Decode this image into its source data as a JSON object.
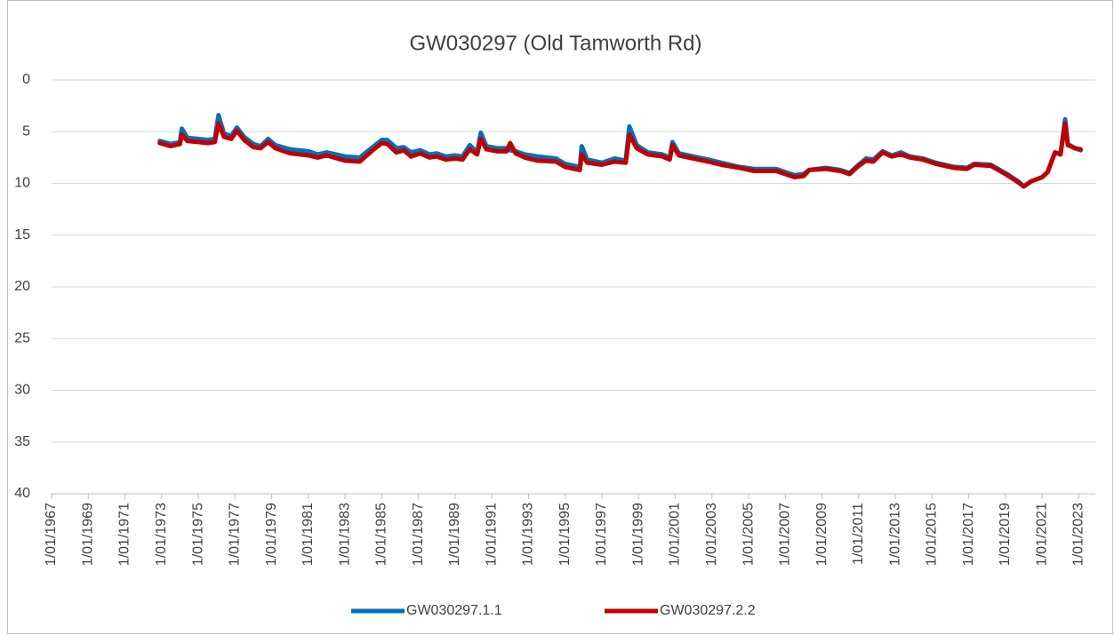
{
  "chart_data": {
    "type": "line",
    "title": "GW030297 (Old Tamworth Rd)",
    "x": [
      1972.9,
      1973.5,
      1974.0,
      1974.1,
      1974.4,
      1975.0,
      1975.5,
      1975.9,
      1976.1,
      1976.4,
      1976.8,
      1977.1,
      1977.5,
      1978.0,
      1978.4,
      1978.8,
      1979.2,
      1980.0,
      1981.0,
      1981.5,
      1982.0,
      1983.0,
      1983.8,
      1984.5,
      1985.0,
      1985.3,
      1985.8,
      1986.2,
      1986.6,
      1987.1,
      1987.6,
      1988.0,
      1988.5,
      1989.0,
      1989.4,
      1989.8,
      1990.2,
      1990.4,
      1990.7,
      1991.3,
      1991.8,
      1992.0,
      1992.3,
      1992.8,
      1993.5,
      1994.5,
      1995.0,
      1995.5,
      1995.8,
      1995.9,
      1996.2,
      1997.0,
      1997.7,
      1998.3,
      1998.5,
      1998.9,
      1999.5,
      2000.3,
      2000.7,
      2000.85,
      2001.2,
      2002.0,
      2002.8,
      2003.5,
      2004.5,
      2005.3,
      2006.5,
      2007.5,
      2008.0,
      2008.3,
      2009.2,
      2010.0,
      2010.5,
      2011.0,
      2011.4,
      2011.8,
      2012.3,
      2012.8,
      2013.3,
      2013.8,
      2014.5,
      2015.2,
      2016.2,
      2016.9,
      2017.3,
      2018.2,
      2019.0,
      2019.7,
      2020.0,
      2020.4,
      2021.0,
      2021.3,
      2021.7,
      2022.0,
      2022.25,
      2022.4,
      2022.8,
      2023.1
    ],
    "series": [
      {
        "name": "GW030297.1.1",
        "color": "#0070c0",
        "values": [
          5.9,
          6.2,
          6.0,
          4.7,
          5.6,
          5.7,
          5.8,
          5.7,
          3.4,
          5.2,
          5.4,
          4.6,
          5.5,
          6.2,
          6.4,
          5.7,
          6.3,
          6.7,
          6.9,
          7.2,
          7.0,
          7.4,
          7.5,
          6.5,
          5.8,
          5.8,
          6.6,
          6.5,
          7.0,
          6.8,
          7.2,
          7.1,
          7.4,
          7.3,
          7.4,
          6.3,
          7.0,
          5.1,
          6.4,
          6.6,
          6.6,
          6.8,
          6.9,
          7.2,
          7.4,
          7.6,
          8.1,
          8.3,
          8.4,
          6.4,
          7.7,
          8.0,
          7.6,
          7.8,
          4.5,
          6.3,
          7.0,
          7.2,
          7.5,
          6.0,
          7.1,
          7.4,
          7.7,
          8.0,
          8.4,
          8.6,
          8.6,
          9.2,
          9.1,
          8.7,
          8.5,
          8.7,
          9.0,
          8.2,
          7.6,
          7.7,
          6.9,
          7.3,
          7.0,
          7.4,
          7.6,
          8.0,
          8.4,
          8.5,
          8.1,
          8.2,
          9.0,
          9.8,
          10.3,
          9.8,
          9.4,
          8.9,
          7.0,
          7.2,
          3.8,
          6.2,
          6.6,
          6.8
        ]
      },
      {
        "name": "GW030297.2.2",
        "color": "#c00000",
        "values": [
          6.1,
          6.4,
          6.2,
          5.3,
          5.9,
          6.0,
          6.1,
          6.0,
          4.2,
          5.5,
          5.7,
          4.9,
          5.8,
          6.5,
          6.6,
          6.0,
          6.6,
          7.1,
          7.3,
          7.5,
          7.3,
          7.8,
          7.9,
          6.8,
          6.1,
          6.2,
          7.0,
          6.8,
          7.4,
          7.1,
          7.5,
          7.4,
          7.7,
          7.6,
          7.7,
          6.7,
          7.2,
          5.7,
          6.7,
          6.9,
          6.9,
          6.1,
          7.1,
          7.5,
          7.8,
          7.9,
          8.4,
          8.6,
          8.7,
          7.2,
          8.0,
          8.2,
          7.9,
          8.0,
          5.3,
          6.6,
          7.2,
          7.4,
          7.7,
          6.3,
          7.3,
          7.6,
          7.9,
          8.2,
          8.5,
          8.8,
          8.8,
          9.4,
          9.3,
          8.7,
          8.6,
          8.8,
          9.1,
          8.3,
          7.8,
          7.9,
          7.0,
          7.4,
          7.2,
          7.5,
          7.7,
          8.1,
          8.5,
          8.6,
          8.2,
          8.3,
          9.1,
          9.9,
          10.3,
          9.8,
          9.4,
          8.9,
          7.0,
          7.2,
          4.2,
          6.3,
          6.6,
          6.7
        ]
      }
    ],
    "xlim": [
      1967,
      2023.9
    ],
    "xticks": [
      {
        "value": 1967,
        "label": "1/01/1967"
      },
      {
        "value": 1969,
        "label": "1/01/1969"
      },
      {
        "value": 1971,
        "label": "1/01/1971"
      },
      {
        "value": 1973,
        "label": "1/01/1973"
      },
      {
        "value": 1975,
        "label": "1/01/1975"
      },
      {
        "value": 1977,
        "label": "1/01/1977"
      },
      {
        "value": 1979,
        "label": "1/01/1979"
      },
      {
        "value": 1981,
        "label": "1/01/1981"
      },
      {
        "value": 1983,
        "label": "1/01/1983"
      },
      {
        "value": 1985,
        "label": "1/01/1985"
      },
      {
        "value": 1987,
        "label": "1/01/1987"
      },
      {
        "value": 1989,
        "label": "1/01/1989"
      },
      {
        "value": 1991,
        "label": "1/01/1991"
      },
      {
        "value": 1993,
        "label": "1/01/1993"
      },
      {
        "value": 1995,
        "label": "1/01/1995"
      },
      {
        "value": 1997,
        "label": "1/01/1997"
      },
      {
        "value": 1999,
        "label": "1/01/1999"
      },
      {
        "value": 2001,
        "label": "1/01/2001"
      },
      {
        "value": 2003,
        "label": "1/01/2003"
      },
      {
        "value": 2005,
        "label": "1/01/2005"
      },
      {
        "value": 2007,
        "label": "1/01/2007"
      },
      {
        "value": 2009,
        "label": "1/01/2009"
      },
      {
        "value": 2011,
        "label": "1/01/2011"
      },
      {
        "value": 2013,
        "label": "1/01/2013"
      },
      {
        "value": 2015,
        "label": "1/01/2015"
      },
      {
        "value": 2017,
        "label": "1/01/2017"
      },
      {
        "value": 2019,
        "label": "1/01/2019"
      },
      {
        "value": 2021,
        "label": "1/01/2021"
      },
      {
        "value": 2023,
        "label": "1/01/2023"
      }
    ],
    "ylim": [
      0,
      40
    ],
    "yticks": [
      0,
      5,
      10,
      15,
      20,
      25,
      30,
      35,
      40
    ],
    "y_inverted": true,
    "grid": true,
    "legend": "bottom"
  }
}
